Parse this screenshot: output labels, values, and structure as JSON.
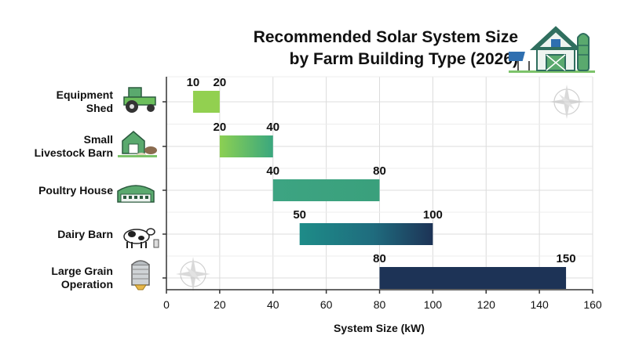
{
  "chart_data": {
    "type": "bar",
    "orientation": "horizontal-range",
    "title": [
      "Recommended Solar System Size",
      "by Farm Building Type (2026)"
    ],
    "xlabel": "System Size (kW)",
    "ylabel": "",
    "xlim": [
      0,
      160
    ],
    "xticks": [
      0,
      20,
      40,
      60,
      80,
      100,
      120,
      140,
      160
    ],
    "grid": true,
    "categories": [
      {
        "label": [
          "Equipment",
          "Shed"
        ],
        "icon": "tractor-icon",
        "min": 10,
        "max": 20,
        "color_start": "#92d050",
        "color_end": "#92d050"
      },
      {
        "label": [
          "Small",
          "Livestock Barn"
        ],
        "icon": "livestock-barn-icon",
        "min": 20,
        "max": 40,
        "color_start": "#8cd052",
        "color_end": "#3aa77e"
      },
      {
        "label": [
          "Poultry House"
        ],
        "icon": "poultry-house-icon",
        "min": 40,
        "max": 80,
        "color_start": "#3da482",
        "color_end": "#3aa07c"
      },
      {
        "label": [
          "Dairy Barn"
        ],
        "icon": "dairy-cow-icon",
        "min": 50,
        "max": 100,
        "color_start": "#1e8c88",
        "color_end": "#1d3356"
      },
      {
        "label": [
          "Large Grain",
          "Operation"
        ],
        "icon": "grain-silo-icon",
        "min": 80,
        "max": 150,
        "color_start": "#1d3356",
        "color_end": "#1d3356"
      }
    ]
  }
}
